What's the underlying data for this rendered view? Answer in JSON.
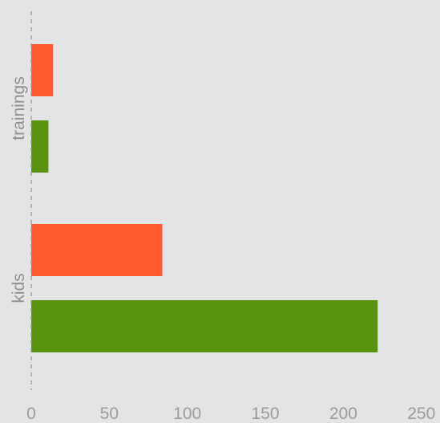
{
  "chart_data": {
    "type": "bar",
    "orientation": "horizontal",
    "title": "",
    "xlabel": "",
    "ylabel": "",
    "categories": [
      "trainings",
      "kids"
    ],
    "series": [
      {
        "color": "#ff5a2d",
        "values": [
          14,
          84
        ]
      },
      {
        "color": "#58920f",
        "values": [
          11,
          222
        ]
      }
    ],
    "xlim": [
      0,
      250
    ],
    "xticks": [
      0,
      50,
      100,
      150,
      200,
      250
    ],
    "grid": false,
    "legend": "none",
    "background": "#e3e4e6"
  }
}
